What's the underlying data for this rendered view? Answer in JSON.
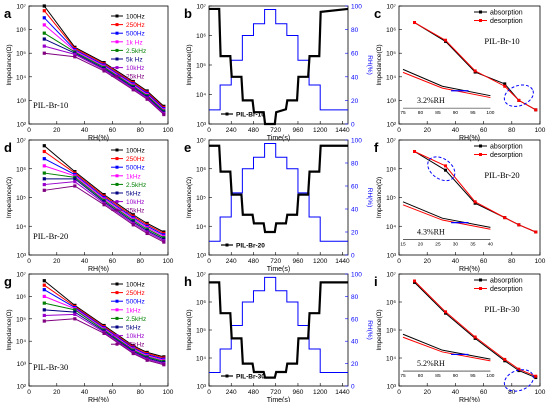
{
  "panels": [
    {
      "letter": "a",
      "type": "line",
      "sample": "PIL-Br-10",
      "xlabel": "RH(%)",
      "ylabel": "Impedance(Ω)",
      "xlim": [
        0,
        100
      ],
      "xticks": [
        "0",
        "20",
        "40",
        "60",
        "80",
        "100"
      ],
      "ylog": [
        2,
        7
      ],
      "yticks": [
        "10²",
        "10³",
        "10⁴",
        "10⁵",
        "10⁶",
        "10⁷"
      ],
      "legend": [
        "100Hz",
        "250Hz",
        "500Hz",
        "1k Hz",
        "2.5kHz",
        "5k Hz",
        "10kHz",
        "25kHz"
      ],
      "x": [
        11,
        33,
        54,
        75,
        85,
        97
      ],
      "series": [
        {
          "name": "100Hz",
          "color": "#000000",
          "y": [
            7.0,
            5.25,
            4.6,
            3.8,
            3.4,
            2.75
          ]
        },
        {
          "name": "250Hz",
          "color": "#ff0000",
          "y": [
            6.8,
            5.2,
            4.55,
            3.75,
            3.35,
            2.7
          ]
        },
        {
          "name": "500Hz",
          "color": "#0000ff",
          "y": [
            6.5,
            5.15,
            4.5,
            3.7,
            3.3,
            2.65
          ]
        },
        {
          "name": "1k Hz",
          "color": "#ff00ff",
          "y": [
            6.2,
            5.1,
            4.45,
            3.65,
            3.25,
            2.6
          ]
        },
        {
          "name": "2.5kHz",
          "color": "#008000",
          "y": [
            5.85,
            5.05,
            4.4,
            3.6,
            3.2,
            2.55
          ]
        },
        {
          "name": "5k Hz",
          "color": "#000080",
          "y": [
            5.6,
            5.0,
            4.35,
            3.55,
            3.15,
            2.5
          ]
        },
        {
          "name": "10kHz",
          "color": "#9900cc",
          "y": [
            5.3,
            4.95,
            4.3,
            3.5,
            3.1,
            2.45
          ]
        },
        {
          "name": "25kHz",
          "color": "#800080",
          "y": [
            5.0,
            4.85,
            4.25,
            3.45,
            3.05,
            2.4
          ]
        }
      ]
    },
    {
      "letter": "b",
      "type": "time",
      "sample": "PIL-Br-10",
      "xlabel": "Time(s)",
      "ylabel": "Impedance(Ω)",
      "y2label": "RH(%)",
      "xlim": [
        0,
        1500
      ],
      "xticks": [
        "0",
        "240",
        "480",
        "720",
        "960",
        "1200",
        "1440"
      ],
      "ylog": [
        3,
        7
      ],
      "yticks": [
        "10³",
        "10⁴",
        "10⁵",
        "10⁶",
        "10⁷"
      ],
      "y2ticks": [
        "0",
        "20",
        "40",
        "60",
        "80",
        "100"
      ],
      "rh": [
        [
          0,
          12
        ],
        [
          120,
          33
        ],
        [
          240,
          54
        ],
        [
          360,
          75
        ],
        [
          480,
          85
        ],
        [
          600,
          97
        ],
        [
          720,
          85
        ],
        [
          840,
          75
        ],
        [
          960,
          54
        ],
        [
          1080,
          33
        ],
        [
          1200,
          12
        ],
        [
          1320,
          12
        ],
        [
          1500,
          12
        ]
      ],
      "imp": [
        [
          0,
          6.9
        ],
        [
          20,
          6.9
        ],
        [
          110,
          6.9
        ],
        [
          125,
          5.3
        ],
        [
          230,
          5.3
        ],
        [
          245,
          4.6
        ],
        [
          350,
          4.6
        ],
        [
          365,
          3.8
        ],
        [
          470,
          3.8
        ],
        [
          485,
          3.4
        ],
        [
          590,
          3.4
        ],
        [
          605,
          3.0
        ],
        [
          710,
          3.0
        ],
        [
          725,
          3.4
        ],
        [
          830,
          3.5
        ],
        [
          845,
          3.8
        ],
        [
          950,
          3.8
        ],
        [
          965,
          4.6
        ],
        [
          1070,
          4.6
        ],
        [
          1085,
          5.3
        ],
        [
          1190,
          5.3
        ],
        [
          1205,
          6.8
        ],
        [
          1500,
          6.9
        ]
      ]
    },
    {
      "letter": "c",
      "type": "hyst",
      "sample": "PIL-Br-10",
      "annotation": "3.2%RH",
      "xlabel": "RH(%)",
      "ylabel": "Impedance(Ω)",
      "xlim": [
        0,
        100
      ],
      "xticks": [
        "0",
        "20",
        "40",
        "60",
        "80",
        "100"
      ],
      "ylog": [
        2,
        7
      ],
      "yticks": [
        "10²",
        "10³",
        "10⁴",
        "10⁵",
        "10⁶",
        "10⁷"
      ],
      "inset_ticks": [
        "75",
        "80",
        "85",
        "90",
        "95",
        "100"
      ],
      "legend": [
        "absorption",
        "desorption"
      ],
      "x": [
        11,
        33,
        54,
        75,
        85,
        97
      ],
      "absorption": [
        6.3,
        5.5,
        4.2,
        3.7,
        3.0,
        2.6
      ],
      "desorption": [
        6.3,
        5.55,
        4.25,
        3.6,
        3.0,
        2.6
      ]
    },
    {
      "letter": "d",
      "type": "line",
      "sample": "PIL-Br-20",
      "xlabel": "RH(%)",
      "ylabel": "Impedance(Ω)",
      "xlim": [
        0,
        100
      ],
      "xticks": [
        "0",
        "20",
        "40",
        "60",
        "80",
        "100"
      ],
      "ylog": [
        3,
        7
      ],
      "yticks": [
        "10³",
        "10⁴",
        "10⁵",
        "10⁶",
        "10⁷"
      ],
      "legend": [
        "100Hz",
        "250Hz",
        "500Hz",
        "1kHz",
        "2.5kHz",
        "5kHz",
        "10kHz",
        "25kHz"
      ],
      "x": [
        11,
        33,
        54,
        75,
        85,
        97
      ],
      "series": [
        {
          "name": "100Hz",
          "color": "#000000",
          "y": [
            6.8,
            5.9,
            5.1,
            4.4,
            4.1,
            3.8
          ]
        },
        {
          "name": "250Hz",
          "color": "#ff0000",
          "y": [
            6.6,
            5.85,
            5.05,
            4.35,
            4.05,
            3.75
          ]
        },
        {
          "name": "500Hz",
          "color": "#0000ff",
          "y": [
            6.35,
            5.8,
            5.0,
            4.3,
            4.0,
            3.7
          ]
        },
        {
          "name": "1kHz",
          "color": "#ff00ff",
          "y": [
            6.1,
            5.75,
            4.95,
            4.25,
            3.95,
            3.65
          ]
        },
        {
          "name": "2.5kHz",
          "color": "#008000",
          "y": [
            5.85,
            5.7,
            4.9,
            4.2,
            3.9,
            3.6
          ]
        },
        {
          "name": "5kHz",
          "color": "#000080",
          "y": [
            5.65,
            5.65,
            4.85,
            4.15,
            3.85,
            3.55
          ]
        },
        {
          "name": "10kHz",
          "color": "#9900cc",
          "y": [
            5.45,
            5.55,
            4.8,
            4.1,
            3.8,
            3.5
          ]
        },
        {
          "name": "25kHz",
          "color": "#800080",
          "y": [
            5.25,
            5.4,
            4.75,
            4.05,
            3.75,
            3.45
          ]
        }
      ]
    },
    {
      "letter": "e",
      "type": "time",
      "sample": "PIL-Br-20",
      "xlabel": "Time(s)",
      "ylabel": "Impedance(Ω)",
      "y2label": "RH(%)",
      "xlim": [
        0,
        1500
      ],
      "xticks": [
        "0",
        "240",
        "480",
        "720",
        "960",
        "1200",
        "1440"
      ],
      "ylog": [
        3,
        7
      ],
      "yticks": [
        "10³",
        "10⁴",
        "10⁵",
        "10⁶",
        "10⁷"
      ],
      "y2ticks": [
        "0",
        "20",
        "40",
        "60",
        "80",
        "100"
      ],
      "rh": [
        [
          0,
          12
        ],
        [
          120,
          33
        ],
        [
          240,
          54
        ],
        [
          360,
          75
        ],
        [
          480,
          85
        ],
        [
          600,
          97
        ],
        [
          720,
          85
        ],
        [
          840,
          75
        ],
        [
          960,
          54
        ],
        [
          1080,
          33
        ],
        [
          1200,
          12
        ],
        [
          1320,
          12
        ],
        [
          1500,
          12
        ]
      ],
      "imp": [
        [
          0,
          6.8
        ],
        [
          110,
          6.8
        ],
        [
          125,
          5.9
        ],
        [
          230,
          5.9
        ],
        [
          245,
          5.1
        ],
        [
          350,
          5.1
        ],
        [
          365,
          4.4
        ],
        [
          470,
          4.4
        ],
        [
          485,
          4.1
        ],
        [
          590,
          4.1
        ],
        [
          605,
          3.8
        ],
        [
          710,
          3.8
        ],
        [
          725,
          4.1
        ],
        [
          830,
          4.1
        ],
        [
          845,
          4.4
        ],
        [
          950,
          4.4
        ],
        [
          965,
          5.1
        ],
        [
          1070,
          5.1
        ],
        [
          1085,
          5.9
        ],
        [
          1190,
          5.9
        ],
        [
          1205,
          6.8
        ],
        [
          1500,
          6.8
        ]
      ]
    },
    {
      "letter": "f",
      "type": "hyst",
      "sample": "PIL-Br-20",
      "annotation": "4.3%RH",
      "xlabel": "RH(%)",
      "ylabel": "Impedance(Ω)",
      "xlim": [
        0,
        100
      ],
      "xticks": [
        "0",
        "20",
        "40",
        "60",
        "80",
        "100"
      ],
      "ylog": [
        3,
        7
      ],
      "yticks": [
        "10³",
        "10⁴",
        "10⁵",
        "10⁶",
        "10⁷"
      ],
      "inset_ticks": [
        "15",
        "20",
        "25",
        "30",
        "35",
        "40"
      ],
      "legend": [
        "absorption",
        "desorption"
      ],
      "x": [
        11,
        33,
        54,
        75,
        85,
        97
      ],
      "absorption": [
        6.6,
        5.95,
        4.8,
        4.3,
        4.05,
        3.8
      ],
      "desorption": [
        6.6,
        6.1,
        4.85,
        4.3,
        4.05,
        3.8
      ]
    },
    {
      "letter": "g",
      "type": "line",
      "sample": "PIL-Br-30",
      "xlabel": "RH(%)",
      "ylabel": "Impedance(Ω)",
      "xlim": [
        0,
        100
      ],
      "xticks": [
        "0",
        "20",
        "40",
        "60",
        "80",
        "100"
      ],
      "ylog": [
        2,
        7
      ],
      "yticks": [
        "10²",
        "10³",
        "10⁴",
        "10⁵",
        "10⁶",
        "10⁷"
      ],
      "legend": [
        "100Hz",
        "250Hz",
        "500Hz",
        "1kHz",
        "2.5kHz",
        "5kHz",
        "10kHz",
        "25kHz"
      ],
      "x": [
        11,
        33,
        54,
        75,
        85,
        97
      ],
      "series": [
        {
          "name": "100Hz",
          "color": "#000000",
          "y": [
            6.7,
            5.6,
            4.7,
            3.8,
            3.5,
            3.3
          ]
        },
        {
          "name": "250Hz",
          "color": "#ff0000",
          "y": [
            6.5,
            5.55,
            4.65,
            3.75,
            3.45,
            3.25
          ]
        },
        {
          "name": "500Hz",
          "color": "#0000ff",
          "y": [
            6.3,
            5.5,
            4.6,
            3.7,
            3.4,
            3.2
          ]
        },
        {
          "name": "1kHz",
          "color": "#ff00ff",
          "y": [
            6.0,
            5.45,
            4.55,
            3.65,
            3.35,
            3.15
          ]
        },
        {
          "name": "2.5kHz",
          "color": "#008000",
          "y": [
            5.7,
            5.4,
            4.5,
            3.6,
            3.3,
            3.1
          ]
        },
        {
          "name": "5kHz",
          "color": "#000080",
          "y": [
            5.4,
            5.3,
            4.45,
            3.55,
            3.25,
            3.05
          ]
        },
        {
          "name": "10kHz",
          "color": "#9900cc",
          "y": [
            5.15,
            5.2,
            4.4,
            3.5,
            3.2,
            3.0
          ]
        },
        {
          "name": "25kHz",
          "color": "#800080",
          "y": [
            4.9,
            5.0,
            4.35,
            3.45,
            3.15,
            2.95
          ]
        }
      ]
    },
    {
      "letter": "h",
      "type": "time",
      "sample": "PIL-Br-30",
      "xlabel": "Time(s)",
      "ylabel": "Impedance(Ω)",
      "y2label": "RH(%)",
      "xlim": [
        0,
        1500
      ],
      "xticks": [
        "0",
        "240",
        "480",
        "720",
        "960",
        "1200",
        "1440"
      ],
      "ylog": [
        3,
        7
      ],
      "yticks": [
        "10³",
        "10⁴",
        "10⁵",
        "10⁶",
        "10⁷"
      ],
      "y2ticks": [
        "0",
        "20",
        "40",
        "60",
        "80",
        "100"
      ],
      "rh": [
        [
          0,
          12
        ],
        [
          120,
          33
        ],
        [
          240,
          54
        ],
        [
          360,
          75
        ],
        [
          480,
          85
        ],
        [
          600,
          97
        ],
        [
          720,
          85
        ],
        [
          840,
          75
        ],
        [
          960,
          54
        ],
        [
          1080,
          33
        ],
        [
          1200,
          12
        ],
        [
          1320,
          12
        ],
        [
          1500,
          12
        ]
      ],
      "imp": [
        [
          0,
          6.7
        ],
        [
          110,
          6.7
        ],
        [
          125,
          5.6
        ],
        [
          230,
          5.6
        ],
        [
          245,
          4.7
        ],
        [
          350,
          4.7
        ],
        [
          365,
          3.8
        ],
        [
          470,
          3.8
        ],
        [
          485,
          3.5
        ],
        [
          590,
          3.5
        ],
        [
          605,
          3.3
        ],
        [
          710,
          3.3
        ],
        [
          725,
          3.5
        ],
        [
          830,
          3.5
        ],
        [
          845,
          3.8
        ],
        [
          950,
          3.8
        ],
        [
          965,
          4.7
        ],
        [
          1070,
          4.7
        ],
        [
          1085,
          5.6
        ],
        [
          1190,
          5.6
        ],
        [
          1205,
          6.7
        ],
        [
          1500,
          6.7
        ]
      ]
    },
    {
      "letter": "i",
      "type": "hyst",
      "sample": "PIL-Br-30",
      "annotation": "5.2%RH",
      "xlabel": "RH(%)",
      "ylabel": "Impedance(Ω)",
      "xlim": [
        0,
        100
      ],
      "xticks": [
        "0",
        "20",
        "40",
        "60",
        "80",
        "100"
      ],
      "ylog": [
        3,
        7
      ],
      "yticks": [
        "10³",
        "10⁴",
        "10⁵",
        "10⁶",
        "10⁷"
      ],
      "inset_ticks": [
        "75",
        "80",
        "85",
        "90",
        "95",
        "100"
      ],
      "legend": [
        "absorption",
        "desorption"
      ],
      "x": [
        11,
        33,
        54,
        75,
        85,
        97
      ],
      "absorption": [
        6.7,
        5.6,
        4.7,
        3.9,
        3.55,
        3.3
      ],
      "desorption": [
        6.75,
        5.65,
        4.75,
        3.95,
        3.6,
        3.35
      ]
    }
  ],
  "chart_data": [
    {
      "type": "line",
      "panel": "a",
      "title": "",
      "xlabel": "RH(%)",
      "ylabel": "Impedance(Ω)",
      "log_y": true,
      "x": [
        11,
        33,
        54,
        75,
        85,
        97
      ],
      "series": [
        {
          "name": "100Hz",
          "values": [
            10000000.0,
            180000.0,
            40000.0,
            6300.0,
            2500.0,
            560.0
          ]
        },
        {
          "name": "25kHz",
          "values": [
            100000.0,
            71000.0,
            18000.0,
            2800.0,
            1100.0,
            250.0
          ]
        }
      ]
    },
    {
      "type": "line",
      "panel": "d",
      "title": "",
      "xlabel": "RH(%)",
      "ylabel": "Impedance(Ω)",
      "log_y": true,
      "x": [
        11,
        33,
        54,
        75,
        85,
        97
      ],
      "series": [
        {
          "name": "100Hz",
          "values": [
            6300000.0,
            790000.0,
            130000.0,
            25000.0,
            13000.0,
            6300.0
          ]
        },
        {
          "name": "25kHz",
          "values": [
            180000.0,
            250000.0,
            56000.0,
            11000.0,
            5600.0,
            2800.0
          ]
        }
      ]
    },
    {
      "type": "line",
      "panel": "g",
      "title": "",
      "xlabel": "RH(%)",
      "ylabel": "Impedance(Ω)",
      "log_y": true,
      "x": [
        11,
        33,
        54,
        75,
        85,
        97
      ],
      "series": [
        {
          "name": "100Hz",
          "values": [
            5000000.0,
            400000.0,
            50000.0,
            6300.0,
            3200.0,
            2000.0
          ]
        },
        {
          "name": "25kHz",
          "values": [
            79000.0,
            100000.0,
            22000.0,
            2800.0,
            1400.0,
            890.0
          ]
        }
      ]
    }
  ]
}
